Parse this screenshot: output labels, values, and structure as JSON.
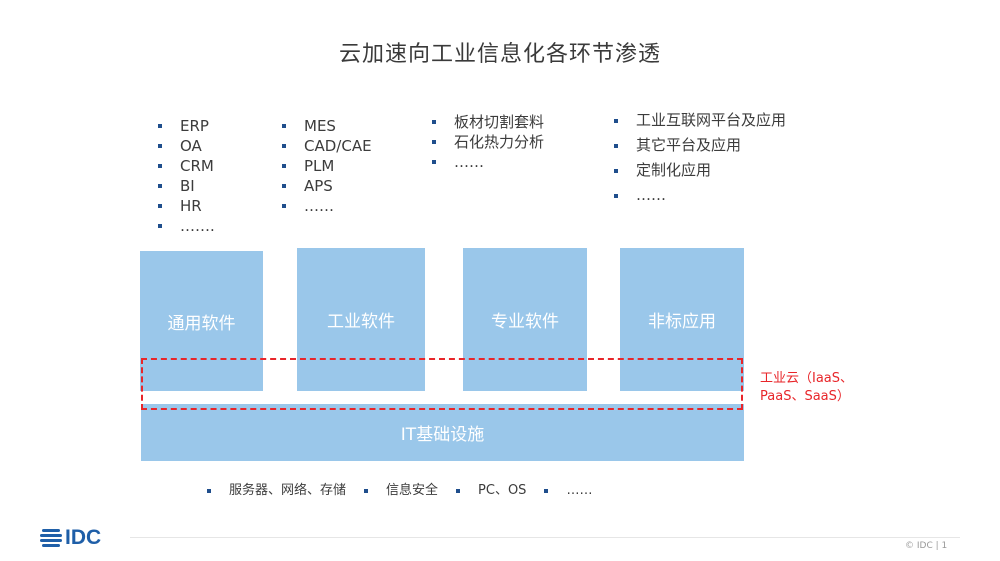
{
  "title": "云加速向工业信息化各环节渗透",
  "lists": {
    "general": [
      "ERP",
      "OA",
      "CRM",
      "BI",
      "HR",
      "……."
    ],
    "industrial": [
      "MES",
      "CAD/CAE",
      "PLM",
      "APS",
      "……"
    ],
    "professional": [
      "板材切割套料",
      "石化热力分析",
      "……"
    ],
    "applications": [
      "工业互联网平台及应用",
      "其它平台及应用",
      "定制化应用",
      "……"
    ]
  },
  "boxes": {
    "general_software": "通用软件",
    "industrial_software": "工业软件",
    "professional_software": "专业软件",
    "nonstandard_apps": "非标应用",
    "it_infrastructure": "IT基础设施"
  },
  "cloud_label": {
    "line1": "工业云（IaaS、",
    "line2": "PaaS、SaaS）"
  },
  "bottom_items": [
    "服务器、网络、存储",
    "信息安全",
    "PC、OS",
    "……"
  ],
  "footer": {
    "logo": "IDC",
    "note": "© IDC  |  1"
  },
  "colors": {
    "box_fill": "#9ac7ea",
    "bullet": "#1f4e8c",
    "cloud_highlight": "#e8262a",
    "logo": "#1f5fa8"
  }
}
